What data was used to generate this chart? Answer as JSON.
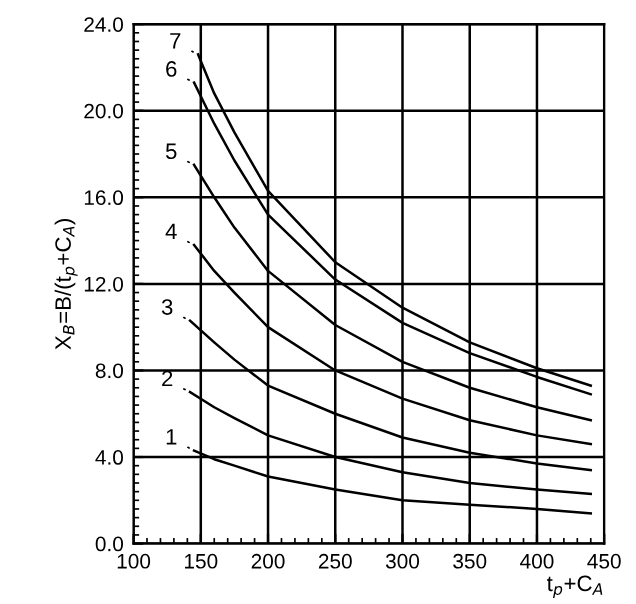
{
  "chart_data": {
    "type": "line",
    "xlabel": "t$_{p}$+C$_{A}$",
    "ylabel": "X$_{B}$=B/(t$_{p}$+C$_{A}$)",
    "xlim": [
      100,
      450
    ],
    "xticks": [
      100,
      150,
      200,
      250,
      300,
      350,
      400,
      450
    ],
    "ylim": [
      0,
      24
    ],
    "yticks": [
      {
        "value": 0,
        "label": "0.0"
      },
      {
        "value": 4,
        "label": "4.0"
      },
      {
        "value": 8,
        "label": "8.0"
      },
      {
        "value": 12,
        "label": "12.0"
      },
      {
        "value": 16,
        "label": "16.0"
      },
      {
        "value": 20,
        "label": "20.0"
      },
      {
        "value": 24,
        "label": "24.0"
      }
    ],
    "grid": true,
    "marker": "none",
    "line_style": "solid",
    "series": [
      {
        "color": "#000000",
        "x": [
          145,
          160,
          175,
          200,
          250,
          300,
          350,
          400,
          440
        ],
        "values": [
          4.3,
          3.9,
          3.6,
          3.1,
          2.5,
          2.0,
          1.8,
          1.6,
          1.4
        ]
      },
      {
        "color": "#000000",
        "x": [
          142,
          160,
          175,
          200,
          250,
          300,
          350,
          400,
          440
        ],
        "values": [
          7.0,
          6.3,
          5.8,
          5.0,
          4.0,
          3.3,
          2.8,
          2.5,
          2.3
        ]
      },
      {
        "color": "#000000",
        "x": [
          142,
          160,
          175,
          200,
          250,
          300,
          350,
          400,
          440
        ],
        "values": [
          10.3,
          9.3,
          8.5,
          7.3,
          6.0,
          4.9,
          4.2,
          3.7,
          3.4
        ]
      },
      {
        "color": "#000000",
        "x": [
          145,
          160,
          175,
          200,
          250,
          300,
          350,
          400,
          440
        ],
        "values": [
          13.8,
          12.6,
          11.6,
          10.0,
          8.0,
          6.7,
          5.7,
          5.0,
          4.6
        ]
      },
      {
        "color": "#000000",
        "x": [
          145,
          160,
          175,
          200,
          250,
          300,
          350,
          400,
          440
        ],
        "values": [
          17.5,
          16.0,
          14.6,
          12.6,
          10.1,
          8.4,
          7.2,
          6.3,
          5.7
        ]
      },
      {
        "color": "#000000",
        "x": [
          145,
          160,
          175,
          200,
          250,
          300,
          350,
          400,
          440
        ],
        "values": [
          21.3,
          19.4,
          17.7,
          15.2,
          12.2,
          10.2,
          8.8,
          7.7,
          6.9
        ]
      },
      {
        "color": "#000000",
        "x": [
          148,
          160,
          175,
          200,
          250,
          300,
          350,
          400,
          440
        ],
        "values": [
          22.6,
          20.8,
          19.0,
          16.3,
          13.0,
          10.9,
          9.3,
          8.1,
          7.3
        ]
      }
    ],
    "annotations": [
      {
        "text": "1",
        "x": 145,
        "y": 4.3
      },
      {
        "text": "2",
        "x": 142,
        "y": 7.0
      },
      {
        "text": "3",
        "x": 142,
        "y": 10.3
      },
      {
        "text": "4",
        "x": 145,
        "y": 13.8
      },
      {
        "text": "5",
        "x": 145,
        "y": 17.5
      },
      {
        "text": "6",
        "x": 145,
        "y": 21.3
      },
      {
        "text": "7",
        "x": 148,
        "y": 22.6
      }
    ]
  }
}
